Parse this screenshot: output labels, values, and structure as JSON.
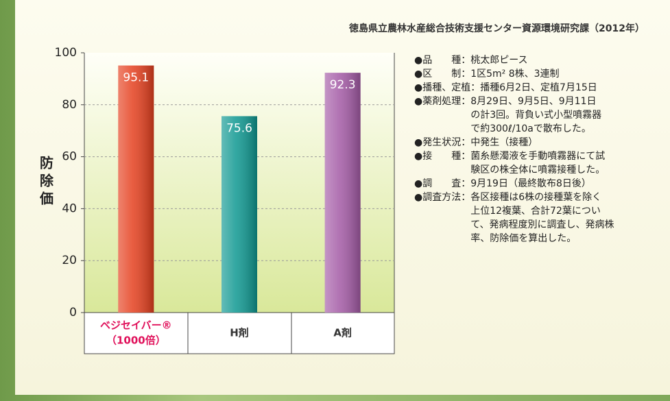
{
  "source": "徳島県立農林水産総合技術支援センター資源環境研究課（2012年）",
  "chart_data": {
    "type": "bar",
    "y_label": "防除価",
    "categories": [
      [
        "ベジセイバー®",
        "（1000倍）"
      ],
      [
        "H剤"
      ],
      [
        "A剤"
      ]
    ],
    "values": [
      95.1,
      75.6,
      92.3
    ],
    "colors": [
      "#e5401f",
      "#0f9891",
      "#a45ba6"
    ],
    "category_color": [
      "#e0105a",
      "#333333",
      "#333333"
    ],
    "ylim": [
      0,
      100
    ],
    "yticks": [
      0,
      20,
      40,
      60,
      80,
      100
    ],
    "grid": true
  },
  "notes": [
    {
      "label": "●品　　種：",
      "lines": [
        "桃太郎ピース"
      ]
    },
    {
      "label": "●区　　制：",
      "lines": [
        "1区5m² 8株、3連制"
      ]
    },
    {
      "label": "●播種、定植：",
      "lines": [
        "播種6月2日、定植7月15日"
      ]
    },
    {
      "label": "●薬剤処理：",
      "lines": [
        "8月29日、9月5日、9月11日",
        "の計3回。背負い式小型噴霧器",
        "で約300ℓ/10aで散布した。"
      ]
    },
    {
      "label": "●発生状況：",
      "lines": [
        "中発生（接種）"
      ]
    },
    {
      "label": "●接　　種：",
      "lines": [
        "菌糸懸濁液を手動噴霧器にて試",
        "験区の株全体に噴霧接種した。"
      ]
    },
    {
      "label": "●調　　査：",
      "lines": [
        "9月19日（最終散布8日後）"
      ]
    },
    {
      "label": "●調査方法：",
      "lines": [
        "各区接種は6株の接種葉を除く",
        "上位12複葉、合計72葉につい",
        "て、発病程度別に調査し、発病株",
        "率、防除価を算出した。"
      ]
    }
  ]
}
